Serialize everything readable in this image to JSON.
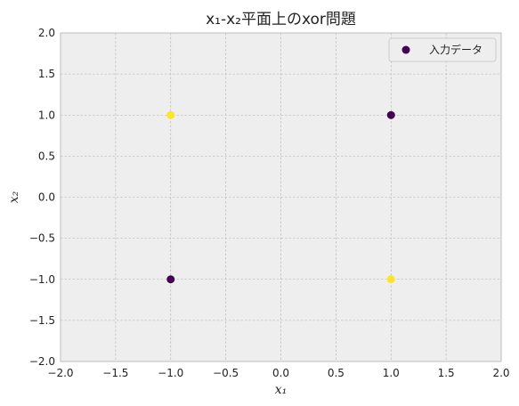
{
  "chart_data": {
    "type": "scatter",
    "title": "x₁-x₂平面上のxor問題",
    "xlabel": "x₁",
    "ylabel": "x₂",
    "xlim": [
      -2.0,
      2.0
    ],
    "ylim": [
      -2.0,
      2.0
    ],
    "xticks": [
      -2.0,
      -1.5,
      -1.0,
      -0.5,
      0.0,
      0.5,
      1.0,
      1.5,
      2.0
    ],
    "yticks": [
      -2.0,
      -1.5,
      -1.0,
      -0.5,
      0.0,
      0.5,
      1.0,
      1.5,
      2.0
    ],
    "xtick_labels": [
      "−2.0",
      "−1.5",
      "−1.0",
      "−0.5",
      "0.0",
      "0.5",
      "1.0",
      "1.5",
      "2.0"
    ],
    "ytick_labels": [
      "−2.0",
      "−1.5",
      "−1.0",
      "−0.5",
      "0.0",
      "0.5",
      "1.0",
      "1.5",
      "2.0"
    ],
    "grid": true,
    "legend": {
      "placement": "top-right",
      "entries": [
        "入力データ"
      ]
    },
    "colors": {
      "class0": "#440154",
      "class1": "#fde725",
      "plot_bg": "#eeeeee",
      "grid": "#b0b0b0"
    },
    "series": [
      {
        "name": "入力データ",
        "points": [
          {
            "x": -1.0,
            "y": 1.0,
            "class": 1
          },
          {
            "x": 1.0,
            "y": 1.0,
            "class": 0
          },
          {
            "x": -1.0,
            "y": -1.0,
            "class": 0
          },
          {
            "x": 1.0,
            "y": -1.0,
            "class": 1
          }
        ]
      }
    ]
  }
}
